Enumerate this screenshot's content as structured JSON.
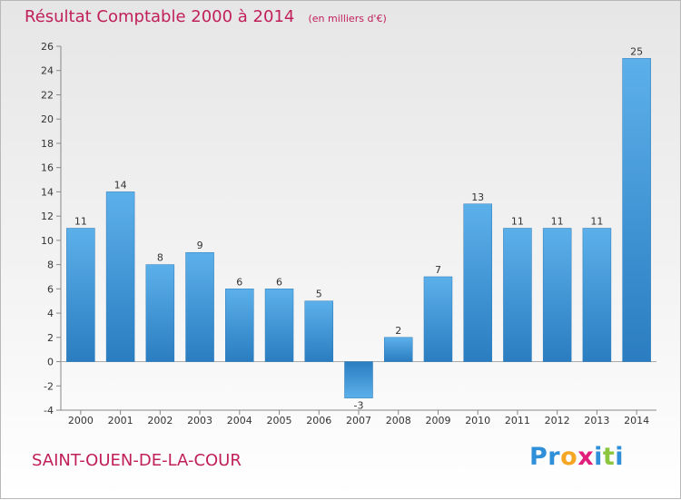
{
  "chart_data": {
    "type": "bar",
    "title": "Résultat Comptable 2000 à 2014",
    "subtitle": "(en milliers d'€)",
    "categories": [
      "2000",
      "2001",
      "2002",
      "2003",
      "2004",
      "2005",
      "2006",
      "2007",
      "2008",
      "2009",
      "2010",
      "2011",
      "2012",
      "2013",
      "2014"
    ],
    "values": [
      11,
      14,
      8,
      9,
      6,
      6,
      5,
      -3,
      2,
      7,
      13,
      11,
      11,
      11,
      25
    ],
    "ylim": [
      -4,
      26
    ],
    "yticks": [
      -4,
      -2,
      0,
      2,
      4,
      6,
      8,
      10,
      12,
      14,
      16,
      18,
      20,
      22,
      24,
      26
    ],
    "xlabel": "",
    "ylabel": "",
    "grid": false,
    "bar_color": "#3a8fd6"
  },
  "footer": {
    "commune": "SAINT-OUEN-DE-LA-COUR"
  },
  "brand": {
    "letters": [
      {
        "ch": "P",
        "color": "#2f8fd8"
      },
      {
        "ch": "r",
        "color": "#2f8fd8"
      },
      {
        "ch": "o",
        "color": "#f5a623"
      },
      {
        "ch": "x",
        "color": "#e0207a"
      },
      {
        "ch": "i",
        "color": "#2f8fd8"
      },
      {
        "ch": "t",
        "color": "#8cc63f"
      },
      {
        "ch": "i",
        "color": "#2f8fd8"
      }
    ]
  }
}
